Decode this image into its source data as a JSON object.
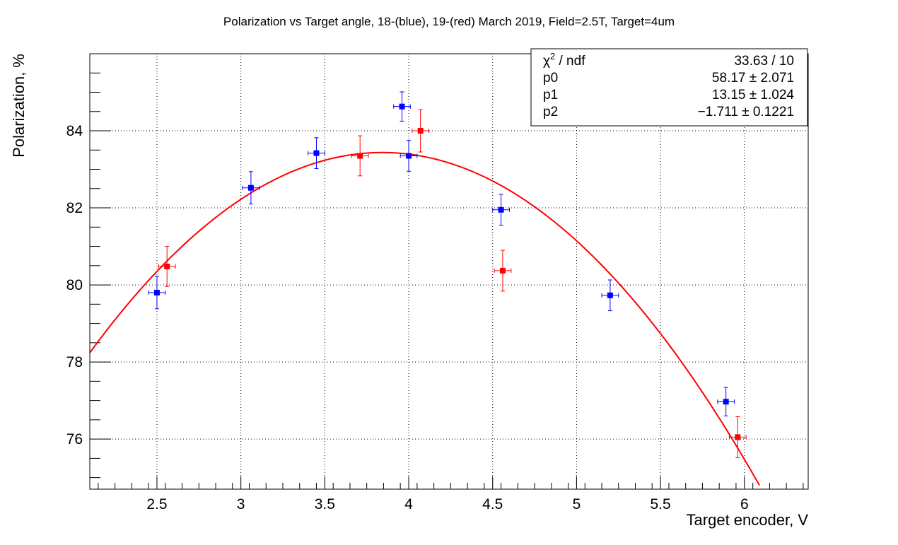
{
  "chart_data": {
    "type": "scatter",
    "title": "Polarization vs Target angle, 18-(blue), 19-(red) March 2019, Field=2.5T, Target=4um",
    "xlabel": "Target encoder, V",
    "ylabel": "Polarization, %",
    "xlim": [
      2.1,
      6.38
    ],
    "ylim": [
      74.7,
      86.0
    ],
    "x_ticks": [
      "2.5",
      "3",
      "3.5",
      "4",
      "4.5",
      "5",
      "5.5",
      "6"
    ],
    "y_ticks": [
      "76",
      "78",
      "80",
      "82",
      "84"
    ],
    "grid": true,
    "colors": {
      "blue": "#0000ff",
      "red": "#ff0000",
      "fit": "#ff0000"
    },
    "series": [
      {
        "color": "#0000ff",
        "points": [
          {
            "x": 2.5,
            "y": 79.8,
            "xerr": 0.05,
            "yerr": 0.42
          },
          {
            "x": 3.06,
            "y": 82.52,
            "xerr": 0.05,
            "yerr": 0.42
          },
          {
            "x": 3.45,
            "y": 83.42,
            "xerr": 0.05,
            "yerr": 0.4
          },
          {
            "x": 3.96,
            "y": 84.63,
            "xerr": 0.05,
            "yerr": 0.38
          },
          {
            "x": 4.0,
            "y": 83.35,
            "xerr": 0.05,
            "yerr": 0.4
          },
          {
            "x": 4.55,
            "y": 81.95,
            "xerr": 0.05,
            "yerr": 0.4
          },
          {
            "x": 5.2,
            "y": 79.73,
            "xerr": 0.05,
            "yerr": 0.4
          },
          {
            "x": 5.89,
            "y": 76.97,
            "xerr": 0.05,
            "yerr": 0.37
          }
        ]
      },
      {
        "color": "#ff0000",
        "points": [
          {
            "x": 2.56,
            "y": 80.48,
            "xerr": 0.05,
            "yerr": 0.52
          },
          {
            "x": 3.71,
            "y": 83.35,
            "xerr": 0.05,
            "yerr": 0.52
          },
          {
            "x": 4.07,
            "y": 84.0,
            "xerr": 0.05,
            "yerr": 0.55
          },
          {
            "x": 4.56,
            "y": 80.37,
            "xerr": 0.05,
            "yerr": 0.53
          },
          {
            "x": 5.96,
            "y": 76.05,
            "xerr": 0.05,
            "yerr": 0.53
          }
        ]
      }
    ],
    "fit": {
      "p0": 58.17,
      "p1": 13.15,
      "p2": -1.711,
      "x_range": [
        2.1,
        6.14
      ]
    },
    "stats": {
      "chi_label": "χ",
      "chi_sup": "2",
      "ndf_label": " / ndf",
      "chi_value": "33.63 / 10",
      "rows": [
        {
          "name": "p0",
          "value": "58.17 ± 2.071"
        },
        {
          "name": "p1",
          "value": "13.15 ± 1.024"
        },
        {
          "name": "p2",
          "value": "−1.711 ± 0.1221"
        }
      ]
    }
  }
}
